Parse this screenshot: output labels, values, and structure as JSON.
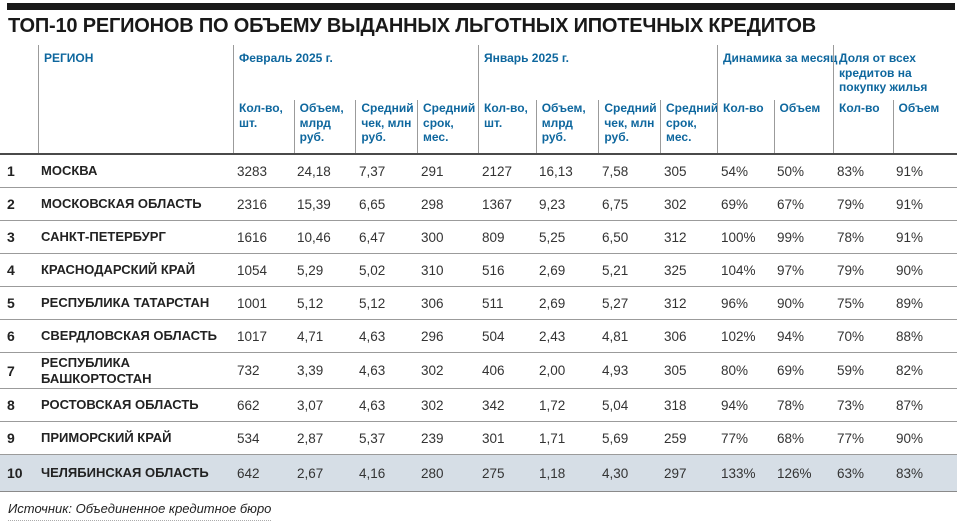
{
  "title": "ТОП-10 РЕГИОНОВ ПО ОБЪЕМУ ВЫДАННЫХ ЛЬГОТНЫХ ИПОТЕЧНЫХ КРЕДИТОВ",
  "source": "Источник: Объединенное кредитное бюро",
  "colors": {
    "header_blue": "#0e679e",
    "highlight_row_bg": "#d6dee6",
    "top_bar": "#191919",
    "row_line": "#9b9b9b"
  },
  "chart_data": {
    "type": "table",
    "title": "ТОП-10 РЕГИОНОВ ПО ОБЪЕМУ ВЫДАННЫХ ЛЬГОТНЫХ ИПОТЕЧНЫХ КРЕДИТОВ",
    "source": "Источник: Объединенное кредитное бюро",
    "region_header": "РЕГИОН",
    "groups": [
      {
        "label": "Февраль 2025 г.",
        "subs": [
          "Кол-во, шт.",
          "Объем, млрд руб.",
          "Средний чек, млн руб.",
          "Средний срок, мес."
        ]
      },
      {
        "label": "Январь 2025 г.",
        "subs": [
          "Кол-во, шт.",
          "Объем, млрд руб.",
          "Средний чек, млн руб.",
          "Средний срок, мес."
        ]
      },
      {
        "label": "Динамика за месяц",
        "subs": [
          "Кол-во",
          "Объем"
        ]
      },
      {
        "label": "Доля от всех кредитов на покупку жилья",
        "subs": [
          "Кол-во",
          "Объем"
        ]
      }
    ],
    "rows": [
      {
        "rank": "1",
        "region": "МОСКВА",
        "highlight": false,
        "values": [
          "3283",
          "24,18",
          "7,37",
          "291",
          "2127",
          "16,13",
          "7,58",
          "305",
          "54%",
          "50%",
          "83%",
          "91%"
        ]
      },
      {
        "rank": "2",
        "region": "МОСКОВСКАЯ ОБЛАСТЬ",
        "highlight": false,
        "values": [
          "2316",
          "15,39",
          "6,65",
          "298",
          "1367",
          "9,23",
          "6,75",
          "302",
          "69%",
          "67%",
          "79%",
          "91%"
        ]
      },
      {
        "rank": "3",
        "region": "САНКТ-ПЕТЕРБУРГ",
        "highlight": false,
        "values": [
          "1616",
          "10,46",
          "6,47",
          "300",
          "809",
          "5,25",
          "6,50",
          "312",
          "100%",
          "99%",
          "78%",
          "91%"
        ]
      },
      {
        "rank": "4",
        "region": "КРАСНОДАРСКИЙ КРАЙ",
        "highlight": false,
        "values": [
          "1054",
          "5,29",
          "5,02",
          "310",
          "516",
          "2,69",
          "5,21",
          "325",
          "104%",
          "97%",
          "79%",
          "90%"
        ]
      },
      {
        "rank": "5",
        "region": "РЕСПУБЛИКА ТАТАРСТАН",
        "highlight": false,
        "values": [
          "1001",
          "5,12",
          "5,12",
          "306",
          "511",
          "2,69",
          "5,27",
          "312",
          "96%",
          "90%",
          "75%",
          "89%"
        ]
      },
      {
        "rank": "6",
        "region": "СВЕРДЛОВСКАЯ ОБЛАСТЬ",
        "highlight": false,
        "values": [
          "1017",
          "4,71",
          "4,63",
          "296",
          "504",
          "2,43",
          "4,81",
          "306",
          "102%",
          "94%",
          "70%",
          "88%"
        ]
      },
      {
        "rank": "7",
        "region": "РЕСПУБЛИКА БАШКОРТОСТАН",
        "highlight": false,
        "values": [
          "732",
          "3,39",
          "4,63",
          "302",
          "406",
          "2,00",
          "4,93",
          "305",
          "80%",
          "69%",
          "59%",
          "82%"
        ]
      },
      {
        "rank": "8",
        "region": "РОСТОВСКАЯ ОБЛАСТЬ",
        "highlight": false,
        "values": [
          "662",
          "3,07",
          "4,63",
          "302",
          "342",
          "1,72",
          "5,04",
          "318",
          "94%",
          "78%",
          "73%",
          "87%"
        ]
      },
      {
        "rank": "9",
        "region": "ПРИМОРСКИЙ КРАЙ",
        "highlight": false,
        "values": [
          "534",
          "2,87",
          "5,37",
          "239",
          "301",
          "1,71",
          "5,69",
          "259",
          "77%",
          "68%",
          "77%",
          "90%"
        ]
      },
      {
        "rank": "10",
        "region": "ЧЕЛЯБИНСКАЯ ОБЛАСТЬ",
        "highlight": true,
        "values": [
          "642",
          "2,67",
          "4,16",
          "280",
          "275",
          "1,18",
          "4,30",
          "297",
          "133%",
          "126%",
          "63%",
          "83%"
        ]
      }
    ]
  }
}
